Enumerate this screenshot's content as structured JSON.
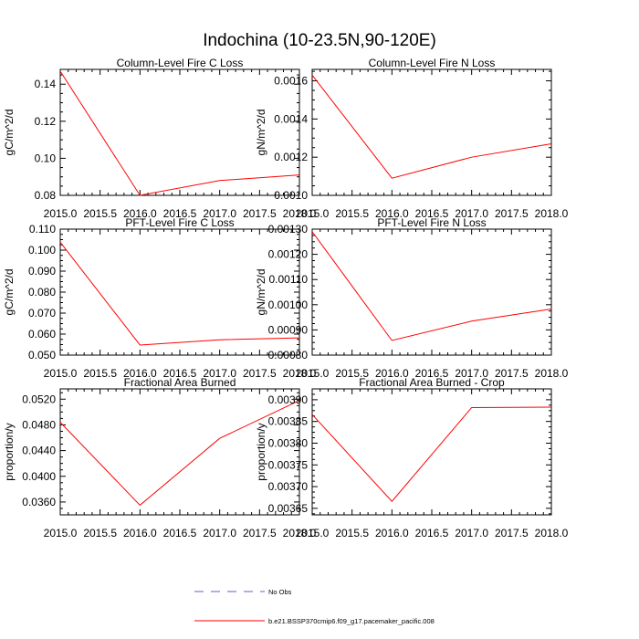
{
  "figure": {
    "title": "Indochina (10-23.5N,90-120E)"
  },
  "colors": {
    "series": "#ff0000",
    "obs": "#6a5acd",
    "axis": "#000000"
  },
  "legend": {
    "obs_label": "No Obs",
    "run_label": "b.e21.BSSP370cmip6.f09_g17.pacemaker_pacific.008"
  },
  "chart_data": [
    {
      "type": "line",
      "title": "Column-Level Fire C Loss",
      "xlabel": "",
      "ylabel": "gC/m^2/d",
      "xlim": [
        2015.0,
        2018.0
      ],
      "ylim": [
        0.08,
        0.148
      ],
      "x_ticks": [
        "2015.0",
        "2015.5",
        "2016.0",
        "2016.5",
        "2017.0",
        "2017.5",
        "2018.0"
      ],
      "y_ticks": [
        0.08,
        0.1,
        0.12,
        0.14
      ],
      "y_tick_labels": [
        "0.08",
        "0.10",
        "0.12",
        "0.14"
      ],
      "series": [
        {
          "name": "b.e21.BSSP370cmip6.f09_g17.pacemaker_pacific.008",
          "x": [
            2015.0,
            2016.0,
            2017.0,
            2018.0
          ],
          "y": [
            0.147,
            0.08,
            0.088,
            0.091
          ]
        }
      ]
    },
    {
      "type": "line",
      "title": "Column-Level Fire N Loss",
      "xlabel": "",
      "ylabel": "gN/m^2/d",
      "xlim": [
        2015.0,
        2018.0
      ],
      "ylim": [
        0.001,
        0.00166
      ],
      "x_ticks": [
        "2015.0",
        "2015.5",
        "2016.0",
        "2016.5",
        "2017.0",
        "2017.5",
        "2018.0"
      ],
      "y_ticks": [
        0.001,
        0.0012,
        0.0014,
        0.0016
      ],
      "y_tick_labels": [
        "0.0010",
        "0.0012",
        "0.0014",
        "0.0016"
      ],
      "series": [
        {
          "name": "b.e21.BSSP370cmip6.f09_g17.pacemaker_pacific.008",
          "x": [
            2015.0,
            2016.0,
            2017.0,
            2018.0
          ],
          "y": [
            0.00163,
            0.00109,
            0.0012,
            0.00127
          ]
        }
      ]
    },
    {
      "type": "line",
      "title": "PFT-Level Fire C Loss",
      "xlabel": "",
      "ylabel": "gC/m^2/d",
      "xlim": [
        2015.0,
        2018.0
      ],
      "ylim": [
        0.05,
        0.11
      ],
      "x_ticks": [
        "2015.0",
        "2015.5",
        "2016.0",
        "2016.5",
        "2017.0",
        "2017.5",
        "2018.0"
      ],
      "y_ticks": [
        0.05,
        0.06,
        0.07,
        0.08,
        0.09,
        0.1,
        0.11
      ],
      "y_tick_labels": [
        "0.050",
        "0.060",
        "0.070",
        "0.080",
        "0.090",
        "0.100",
        "0.110"
      ],
      "series": [
        {
          "name": "b.e21.BSSP370cmip6.f09_g17.pacemaker_pacific.008",
          "x": [
            2015.0,
            2016.0,
            2017.0,
            2018.0
          ],
          "y": [
            0.1038,
            0.0548,
            0.0573,
            0.0582
          ]
        }
      ]
    },
    {
      "type": "line",
      "title": "PFT-Level Fire N Loss",
      "xlabel": "",
      "ylabel": "gN/m^2/d",
      "xlim": [
        2015.0,
        2018.0
      ],
      "ylim": [
        0.0008,
        0.0013
      ],
      "x_ticks": [
        "2015.0",
        "2015.5",
        "2016.0",
        "2016.5",
        "2017.0",
        "2017.5",
        "2018.0"
      ],
      "y_ticks": [
        0.0008,
        0.0009,
        0.001,
        0.0011,
        0.0012,
        0.0013
      ],
      "y_tick_labels": [
        "0.00080",
        "0.00090",
        "0.00100",
        "0.00110",
        "0.00120",
        "0.00130"
      ],
      "series": [
        {
          "name": "b.e21.BSSP370cmip6.f09_g17.pacemaker_pacific.008",
          "x": [
            2015.0,
            2016.0,
            2017.0,
            2018.0
          ],
          "y": [
            0.00129,
            0.000858,
            0.000935,
            0.000983
          ]
        }
      ]
    },
    {
      "type": "line",
      "title": "Fractional Area Burned",
      "xlabel": "",
      "ylabel": "proportion/y",
      "xlim": [
        2015.0,
        2018.0
      ],
      "ylim": [
        0.034,
        0.0536
      ],
      "x_ticks": [
        "2015.0",
        "2015.5",
        "2016.0",
        "2016.5",
        "2017.0",
        "2017.5",
        "2018.0"
      ],
      "y_ticks": [
        0.036,
        0.04,
        0.044,
        0.048,
        0.052
      ],
      "y_tick_labels": [
        "0.0360",
        "0.0400",
        "0.0440",
        "0.0480",
        "0.0520"
      ],
      "series": [
        {
          "name": "b.e21.BSSP370cmip6.f09_g17.pacemaker_pacific.008",
          "x": [
            2015.0,
            2016.0,
            2017.0,
            2018.0
          ],
          "y": [
            0.0484,
            0.0355,
            0.0459,
            0.0518
          ]
        }
      ]
    },
    {
      "type": "line",
      "title": "Fractional Area Burned - Crop",
      "xlabel": "",
      "ylabel": "proportion/y",
      "xlim": [
        2015.0,
        2018.0
      ],
      "ylim": [
        0.003635,
        0.003925
      ],
      "x_ticks": [
        "2015.0",
        "2015.5",
        "2016.0",
        "2016.5",
        "2017.0",
        "2017.5",
        "2018.0"
      ],
      "y_ticks": [
        0.00365,
        0.0037,
        0.00375,
        0.0038,
        0.00385,
        0.0039
      ],
      "y_tick_labels": [
        "0.00365",
        "0.00370",
        "0.00375",
        "0.00380",
        "0.00385",
        "0.00390"
      ],
      "series": [
        {
          "name": "b.e21.BSSP370cmip6.f09_g17.pacemaker_pacific.008",
          "x": [
            2015.0,
            2016.0,
            2017.0,
            2018.0
          ],
          "y": [
            0.003866,
            0.003666,
            0.003882,
            0.003883
          ]
        }
      ]
    }
  ]
}
